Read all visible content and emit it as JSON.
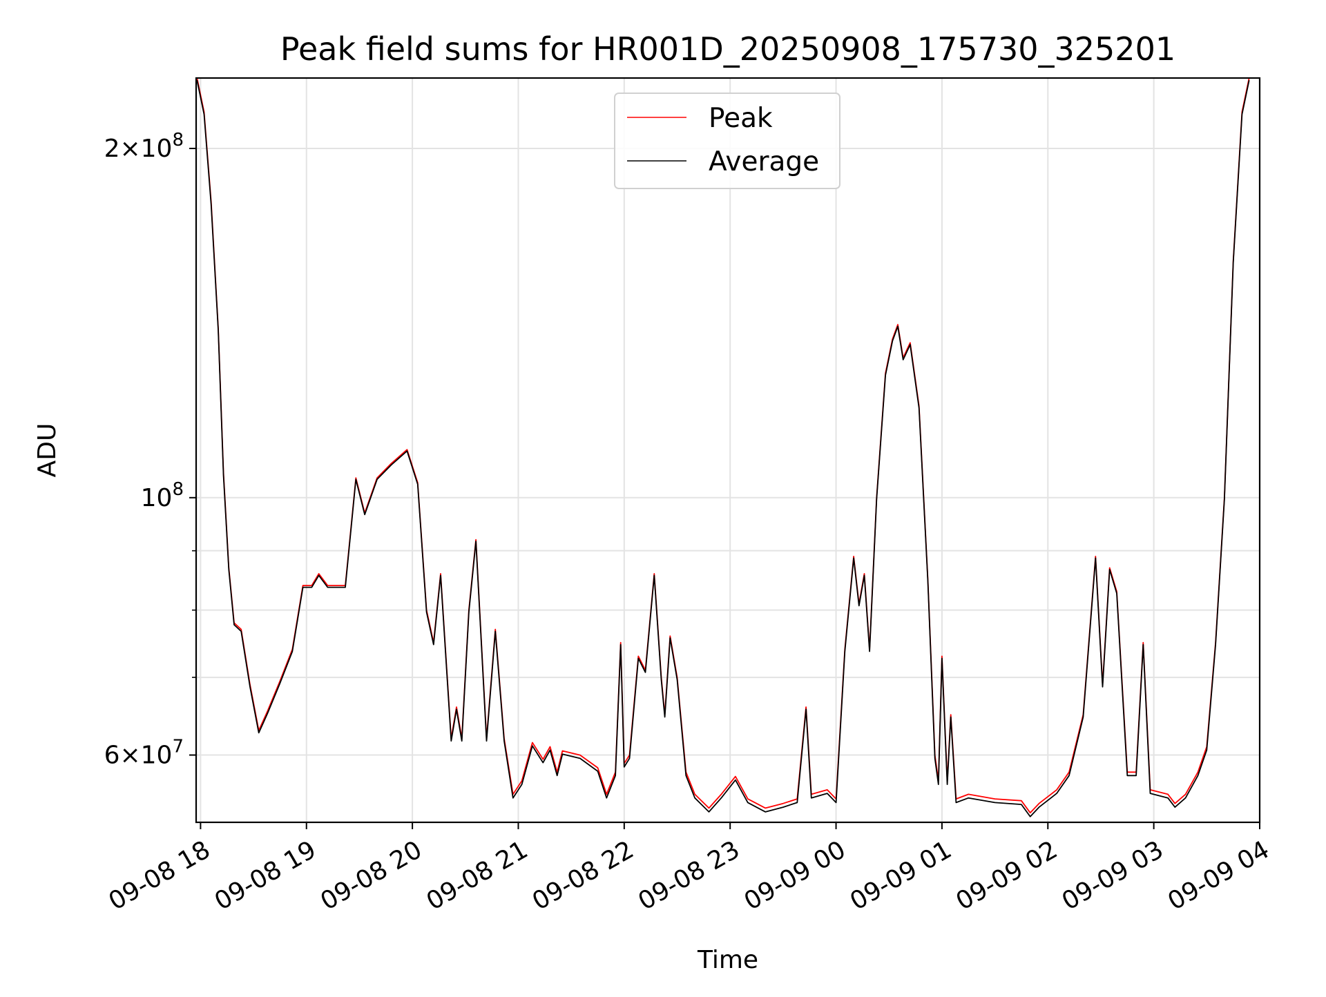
{
  "chart_data": {
    "type": "line",
    "title": "Peak field sums for HR001D_20250908_175730_325201",
    "xlabel": "Time",
    "ylabel": "ADU",
    "yscale": "log",
    "ylim": [
      52500000,
      230000000
    ],
    "xlim": [
      "2025-09-08 17:57:30",
      "2025-09-09 04:00:00"
    ],
    "grid": true,
    "legend_position": "upper center",
    "x_ticks": [
      {
        "time": "2025-09-08 18:00",
        "label": "09-08 18"
      },
      {
        "time": "2025-09-08 19:00",
        "label": "09-08 19"
      },
      {
        "time": "2025-09-08 20:00",
        "label": "09-08 20"
      },
      {
        "time": "2025-09-08 21:00",
        "label": "09-08 21"
      },
      {
        "time": "2025-09-08 22:00",
        "label": "09-08 22"
      },
      {
        "time": "2025-09-08 23:00",
        "label": "09-08 23"
      },
      {
        "time": "2025-09-09 00:00",
        "label": "09-09 00"
      },
      {
        "time": "2025-09-09 01:00",
        "label": "09-09 01"
      },
      {
        "time": "2025-09-09 02:00",
        "label": "09-09 02"
      },
      {
        "time": "2025-09-09 03:00",
        "label": "09-09 03"
      },
      {
        "time": "2025-09-09 04:00",
        "label": "09-09 04"
      }
    ],
    "y_major_ticks": [
      {
        "value": 60000000,
        "mant": "6",
        "exp": "7"
      },
      {
        "value": 100000000,
        "mant": "",
        "exp": "8"
      },
      {
        "value": 200000000,
        "mant": "2",
        "exp": "8"
      }
    ],
    "y_minor_ticks": [
      70000000,
      80000000,
      90000000
    ],
    "series": [
      {
        "name": "Peak",
        "color": "#ff0000",
        "points": [
          [
            "2025-09-08 17:58",
            230000000
          ],
          [
            "2025-09-08 18:02",
            215000000
          ],
          [
            "2025-09-08 18:06",
            180000000
          ],
          [
            "2025-09-08 18:10",
            140000000
          ],
          [
            "2025-09-08 18:13",
            105000000
          ],
          [
            "2025-09-08 18:16",
            87000000
          ],
          [
            "2025-09-08 18:19",
            78000000
          ],
          [
            "2025-09-08 18:23",
            77000000
          ],
          [
            "2025-09-08 18:28",
            69000000
          ],
          [
            "2025-09-08 18:33",
            63000000
          ],
          [
            "2025-09-08 18:38",
            65500000
          ],
          [
            "2025-09-08 18:45",
            69500000
          ],
          [
            "2025-09-08 18:52",
            74000000
          ],
          [
            "2025-09-08 18:58",
            84000000
          ],
          [
            "2025-09-08 19:03",
            84000000
          ],
          [
            "2025-09-08 19:07",
            86000000
          ],
          [
            "2025-09-08 19:12",
            84000000
          ],
          [
            "2025-09-08 19:17",
            84000000
          ],
          [
            "2025-09-08 19:22",
            84000000
          ],
          [
            "2025-09-08 19:28",
            104000000
          ],
          [
            "2025-09-08 19:33",
            97000000
          ],
          [
            "2025-09-08 19:40",
            104000000
          ],
          [
            "2025-09-08 19:48",
            107000000
          ],
          [
            "2025-09-08 19:57",
            110000000
          ],
          [
            "2025-09-08 20:03",
            103000000
          ],
          [
            "2025-09-08 20:08",
            80000000
          ],
          [
            "2025-09-08 20:12",
            75000000
          ],
          [
            "2025-09-08 20:16",
            86000000
          ],
          [
            "2025-09-08 20:22",
            62000000
          ],
          [
            "2025-09-08 20:25",
            66000000
          ],
          [
            "2025-09-08 20:28",
            62000000
          ],
          [
            "2025-09-08 20:32",
            80000000
          ],
          [
            "2025-09-08 20:36",
            92000000
          ],
          [
            "2025-09-08 20:42",
            62000000
          ],
          [
            "2025-09-08 20:47",
            77000000
          ],
          [
            "2025-09-08 20:52",
            62000000
          ],
          [
            "2025-09-08 20:57",
            55500000
          ],
          [
            "2025-09-08 21:02",
            57000000
          ],
          [
            "2025-09-08 21:08",
            61500000
          ],
          [
            "2025-09-08 21:14",
            59500000
          ],
          [
            "2025-09-08 21:18",
            61000000
          ],
          [
            "2025-09-08 21:22",
            58000000
          ],
          [
            "2025-09-08 21:25",
            60500000
          ],
          [
            "2025-09-08 21:35",
            60000000
          ],
          [
            "2025-09-08 21:45",
            58500000
          ],
          [
            "2025-09-08 21:50",
            55500000
          ],
          [
            "2025-09-08 21:55",
            58000000
          ],
          [
            "2025-09-08 21:58",
            75000000
          ],
          [
            "2025-09-08 22:00",
            59000000
          ],
          [
            "2025-09-08 22:03",
            60000000
          ],
          [
            "2025-09-08 22:08",
            73000000
          ],
          [
            "2025-09-08 22:12",
            71000000
          ],
          [
            "2025-09-08 22:17",
            86000000
          ],
          [
            "2025-09-08 22:21",
            70000000
          ],
          [
            "2025-09-08 22:23",
            65000000
          ],
          [
            "2025-09-08 22:26",
            76000000
          ],
          [
            "2025-09-08 22:30",
            70000000
          ],
          [
            "2025-09-08 22:35",
            58000000
          ],
          [
            "2025-09-08 22:40",
            55500000
          ],
          [
            "2025-09-08 22:48",
            54000000
          ],
          [
            "2025-09-08 22:55",
            55500000
          ],
          [
            "2025-09-08 23:03",
            57500000
          ],
          [
            "2025-09-08 23:10",
            55000000
          ],
          [
            "2025-09-08 23:20",
            54000000
          ],
          [
            "2025-09-08 23:30",
            54500000
          ],
          [
            "2025-09-08 23:38",
            55000000
          ],
          [
            "2025-09-08 23:43",
            66000000
          ],
          [
            "2025-09-08 23:46",
            55500000
          ],
          [
            "2025-09-08 23:55",
            56000000
          ],
          [
            "2025-09-09 00:00",
            55000000
          ],
          [
            "2025-09-09 00:05",
            74000000
          ],
          [
            "2025-09-09 00:10",
            89000000
          ],
          [
            "2025-09-09 00:13",
            81000000
          ],
          [
            "2025-09-09 00:16",
            86000000
          ],
          [
            "2025-09-09 00:19",
            74000000
          ],
          [
            "2025-09-09 00:23",
            100000000
          ],
          [
            "2025-09-09 00:28",
            128000000
          ],
          [
            "2025-09-09 00:32",
            137000000
          ],
          [
            "2025-09-09 00:35",
            141000000
          ],
          [
            "2025-09-09 00:38",
            132000000
          ],
          [
            "2025-09-09 00:42",
            136000000
          ],
          [
            "2025-09-09 00:47",
            120000000
          ],
          [
            "2025-09-09 00:52",
            85000000
          ],
          [
            "2025-09-09 00:56",
            60000000
          ],
          [
            "2025-09-09 00:58",
            57000000
          ],
          [
            "2025-09-09 01:00",
            73000000
          ],
          [
            "2025-09-09 01:03",
            57000000
          ],
          [
            "2025-09-09 01:05",
            65000000
          ],
          [
            "2025-09-09 01:08",
            55000000
          ],
          [
            "2025-09-09 01:15",
            55500000
          ],
          [
            "2025-09-09 01:30",
            55000000
          ],
          [
            "2025-09-09 01:45",
            54800000
          ],
          [
            "2025-09-09 01:50",
            53500000
          ],
          [
            "2025-09-09 01:55",
            54500000
          ],
          [
            "2025-09-09 02:05",
            56000000
          ],
          [
            "2025-09-09 02:12",
            58000000
          ],
          [
            "2025-09-09 02:20",
            65000000
          ],
          [
            "2025-09-09 02:27",
            89000000
          ],
          [
            "2025-09-09 02:31",
            69000000
          ],
          [
            "2025-09-09 02:35",
            87000000
          ],
          [
            "2025-09-09 02:39",
            83000000
          ],
          [
            "2025-09-09 02:45",
            58000000
          ],
          [
            "2025-09-09 02:50",
            58000000
          ],
          [
            "2025-09-09 02:54",
            75000000
          ],
          [
            "2025-09-09 02:58",
            56000000
          ],
          [
            "2025-09-09 03:08",
            55500000
          ],
          [
            "2025-09-09 03:12",
            54500000
          ],
          [
            "2025-09-09 03:18",
            55500000
          ],
          [
            "2025-09-09 03:25",
            58000000
          ],
          [
            "2025-09-09 03:30",
            61000000
          ],
          [
            "2025-09-09 03:35",
            75000000
          ],
          [
            "2025-09-09 03:40",
            100000000
          ],
          [
            "2025-09-09 03:45",
            160000000
          ],
          [
            "2025-09-09 03:50",
            215000000
          ],
          [
            "2025-09-09 03:54",
            230000000
          ]
        ]
      },
      {
        "name": "Average",
        "color": "#000000",
        "points": [
          [
            "2025-09-08 17:58",
            229000000
          ],
          [
            "2025-09-08 18:02",
            214000000
          ],
          [
            "2025-09-08 18:06",
            179000000
          ],
          [
            "2025-09-08 18:10",
            139500000
          ],
          [
            "2025-09-08 18:13",
            104500000
          ],
          [
            "2025-09-08 18:16",
            86700000
          ],
          [
            "2025-09-08 18:19",
            77700000
          ],
          [
            "2025-09-08 18:23",
            76700000
          ],
          [
            "2025-09-08 18:28",
            68700000
          ],
          [
            "2025-09-08 18:33",
            62700000
          ],
          [
            "2025-09-08 18:38",
            65200000
          ],
          [
            "2025-09-08 18:45",
            69200000
          ],
          [
            "2025-09-08 18:52",
            73700000
          ],
          [
            "2025-09-08 18:58",
            83700000
          ],
          [
            "2025-09-08 19:03",
            83700000
          ],
          [
            "2025-09-08 19:07",
            85700000
          ],
          [
            "2025-09-08 19:12",
            83700000
          ],
          [
            "2025-09-08 19:17",
            83700000
          ],
          [
            "2025-09-08 19:22",
            83700000
          ],
          [
            "2025-09-08 19:28",
            103700000
          ],
          [
            "2025-09-08 19:33",
            96700000
          ],
          [
            "2025-09-08 19:40",
            103700000
          ],
          [
            "2025-09-08 19:48",
            106700000
          ],
          [
            "2025-09-08 19:57",
            109700000
          ],
          [
            "2025-09-08 20:03",
            102700000
          ],
          [
            "2025-09-08 20:08",
            79700000
          ],
          [
            "2025-09-08 20:12",
            74700000
          ],
          [
            "2025-09-08 20:16",
            85700000
          ],
          [
            "2025-09-08 20:22",
            61700000
          ],
          [
            "2025-09-08 20:25",
            65700000
          ],
          [
            "2025-09-08 20:28",
            61700000
          ],
          [
            "2025-09-08 20:32",
            79700000
          ],
          [
            "2025-09-08 20:36",
            91700000
          ],
          [
            "2025-09-08 20:42",
            61700000
          ],
          [
            "2025-09-08 20:47",
            76700000
          ],
          [
            "2025-09-08 20:52",
            61700000
          ],
          [
            "2025-09-08 20:57",
            55100000
          ],
          [
            "2025-09-08 21:02",
            56600000
          ],
          [
            "2025-09-08 21:08",
            61100000
          ],
          [
            "2025-09-08 21:14",
            59100000
          ],
          [
            "2025-09-08 21:18",
            60600000
          ],
          [
            "2025-09-08 21:22",
            57600000
          ],
          [
            "2025-09-08 21:25",
            60100000
          ],
          [
            "2025-09-08 21:35",
            59600000
          ],
          [
            "2025-09-08 21:45",
            58100000
          ],
          [
            "2025-09-08 21:50",
            55100000
          ],
          [
            "2025-09-08 21:55",
            57600000
          ],
          [
            "2025-09-08 21:58",
            74700000
          ],
          [
            "2025-09-08 22:00",
            58600000
          ],
          [
            "2025-09-08 22:03",
            59600000
          ],
          [
            "2025-09-08 22:08",
            72700000
          ],
          [
            "2025-09-08 22:12",
            70700000
          ],
          [
            "2025-09-08 22:17",
            85700000
          ],
          [
            "2025-09-08 22:21",
            69700000
          ],
          [
            "2025-09-08 22:23",
            64700000
          ],
          [
            "2025-09-08 22:26",
            75700000
          ],
          [
            "2025-09-08 22:30",
            69700000
          ],
          [
            "2025-09-08 22:35",
            57600000
          ],
          [
            "2025-09-08 22:40",
            55100000
          ],
          [
            "2025-09-08 22:48",
            53600000
          ],
          [
            "2025-09-08 22:55",
            55100000
          ],
          [
            "2025-09-08 23:03",
            57100000
          ],
          [
            "2025-09-08 23:10",
            54600000
          ],
          [
            "2025-09-08 23:20",
            53600000
          ],
          [
            "2025-09-08 23:30",
            54100000
          ],
          [
            "2025-09-08 23:38",
            54600000
          ],
          [
            "2025-09-08 23:43",
            65700000
          ],
          [
            "2025-09-08 23:46",
            55100000
          ],
          [
            "2025-09-08 23:55",
            55600000
          ],
          [
            "2025-09-09 00:00",
            54600000
          ],
          [
            "2025-09-09 00:05",
            73700000
          ],
          [
            "2025-09-09 00:10",
            88700000
          ],
          [
            "2025-09-09 00:13",
            80700000
          ],
          [
            "2025-09-09 00:16",
            85700000
          ],
          [
            "2025-09-09 00:19",
            73700000
          ],
          [
            "2025-09-09 00:23",
            99700000
          ],
          [
            "2025-09-09 00:28",
            127500000
          ],
          [
            "2025-09-09 00:32",
            136500000
          ],
          [
            "2025-09-09 00:35",
            140500000
          ],
          [
            "2025-09-09 00:38",
            131500000
          ],
          [
            "2025-09-09 00:42",
            135500000
          ],
          [
            "2025-09-09 00:47",
            119500000
          ],
          [
            "2025-09-09 00:52",
            84700000
          ],
          [
            "2025-09-09 00:56",
            59600000
          ],
          [
            "2025-09-09 00:58",
            56600000
          ],
          [
            "2025-09-09 01:00",
            72700000
          ],
          [
            "2025-09-09 01:03",
            56600000
          ],
          [
            "2025-09-09 01:05",
            64700000
          ],
          [
            "2025-09-09 01:08",
            54600000
          ],
          [
            "2025-09-09 01:15",
            55100000
          ],
          [
            "2025-09-09 01:30",
            54600000
          ],
          [
            "2025-09-09 01:45",
            54400000
          ],
          [
            "2025-09-09 01:50",
            53100000
          ],
          [
            "2025-09-09 01:55",
            54100000
          ],
          [
            "2025-09-09 02:05",
            55600000
          ],
          [
            "2025-09-09 02:12",
            57600000
          ],
          [
            "2025-09-09 02:20",
            64700000
          ],
          [
            "2025-09-09 02:27",
            88700000
          ],
          [
            "2025-09-09 02:31",
            68700000
          ],
          [
            "2025-09-09 02:35",
            86700000
          ],
          [
            "2025-09-09 02:39",
            82700000
          ],
          [
            "2025-09-09 02:45",
            57600000
          ],
          [
            "2025-09-09 02:50",
            57600000
          ],
          [
            "2025-09-09 02:54",
            74700000
          ],
          [
            "2025-09-09 02:58",
            55600000
          ],
          [
            "2025-09-09 03:08",
            55100000
          ],
          [
            "2025-09-09 03:12",
            54100000
          ],
          [
            "2025-09-09 03:18",
            55100000
          ],
          [
            "2025-09-09 03:25",
            57600000
          ],
          [
            "2025-09-09 03:30",
            60600000
          ],
          [
            "2025-09-09 03:35",
            74700000
          ],
          [
            "2025-09-09 03:40",
            99700000
          ],
          [
            "2025-09-09 03:45",
            159500000
          ],
          [
            "2025-09-09 03:50",
            214000000
          ],
          [
            "2025-09-09 03:54",
            229000000
          ]
        ]
      }
    ]
  }
}
